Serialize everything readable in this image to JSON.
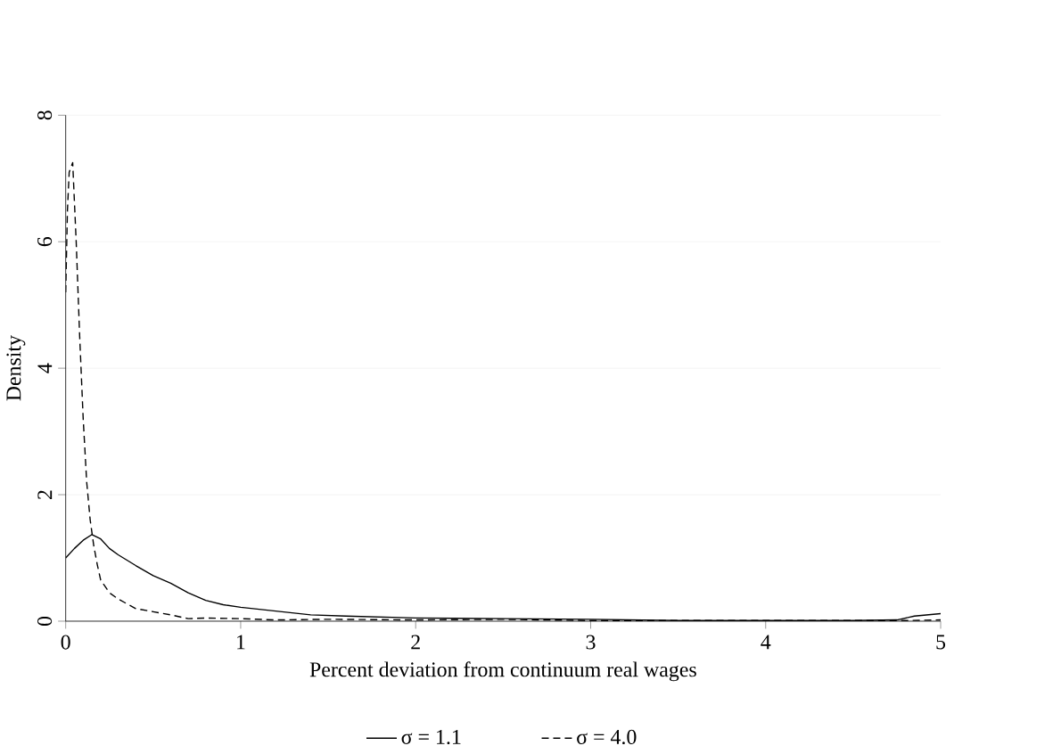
{
  "chart_data": {
    "type": "line",
    "xlabel": "Percent deviation from continuum real wages",
    "ylabel": "Density",
    "xlim": [
      0,
      5
    ],
    "ylim": [
      0,
      8
    ],
    "xticks": [
      0,
      1,
      2,
      3,
      4,
      5
    ],
    "yticks": [
      0,
      2,
      4,
      6,
      8
    ],
    "grid": "y",
    "legend": "bottom",
    "marker": "none",
    "series": [
      {
        "name": "σ = 1.1",
        "color": "#000000",
        "line_style": "solid",
        "x": [
          0,
          0.05,
          0.1,
          0.15,
          0.2,
          0.25,
          0.3,
          0.4,
          0.5,
          0.6,
          0.7,
          0.8,
          0.9,
          1.0,
          1.2,
          1.4,
          1.6,
          2,
          2.5,
          3,
          3.5,
          4,
          4.5,
          4.75,
          4.85,
          5
        ],
        "values": [
          1.0,
          1.15,
          1.28,
          1.37,
          1.3,
          1.15,
          1.05,
          0.88,
          0.72,
          0.6,
          0.45,
          0.33,
          0.26,
          0.22,
          0.16,
          0.1,
          0.08,
          0.05,
          0.04,
          0.03,
          0.01,
          0.01,
          0.01,
          0.02,
          0.08,
          0.12
        ]
      },
      {
        "name": "σ = 4.0",
        "color": "#000000",
        "line_style": "dashed",
        "x": [
          0,
          0.01,
          0.02,
          0.04,
          0.06,
          0.08,
          0.1,
          0.12,
          0.14,
          0.16,
          0.18,
          0.2,
          0.25,
          0.3,
          0.4,
          0.5,
          0.6,
          0.7,
          0.8,
          1,
          1.2,
          1.5,
          2,
          2.5,
          3,
          4,
          4.8,
          5
        ],
        "values": [
          5.2,
          6.5,
          7.1,
          7.25,
          6.0,
          4.5,
          3.2,
          2.2,
          1.6,
          1.2,
          0.9,
          0.65,
          0.45,
          0.35,
          0.2,
          0.15,
          0.1,
          0.04,
          0.05,
          0.04,
          0.02,
          0.03,
          0.02,
          0.03,
          0.01,
          0.01,
          0.01,
          0.02
        ]
      }
    ]
  }
}
